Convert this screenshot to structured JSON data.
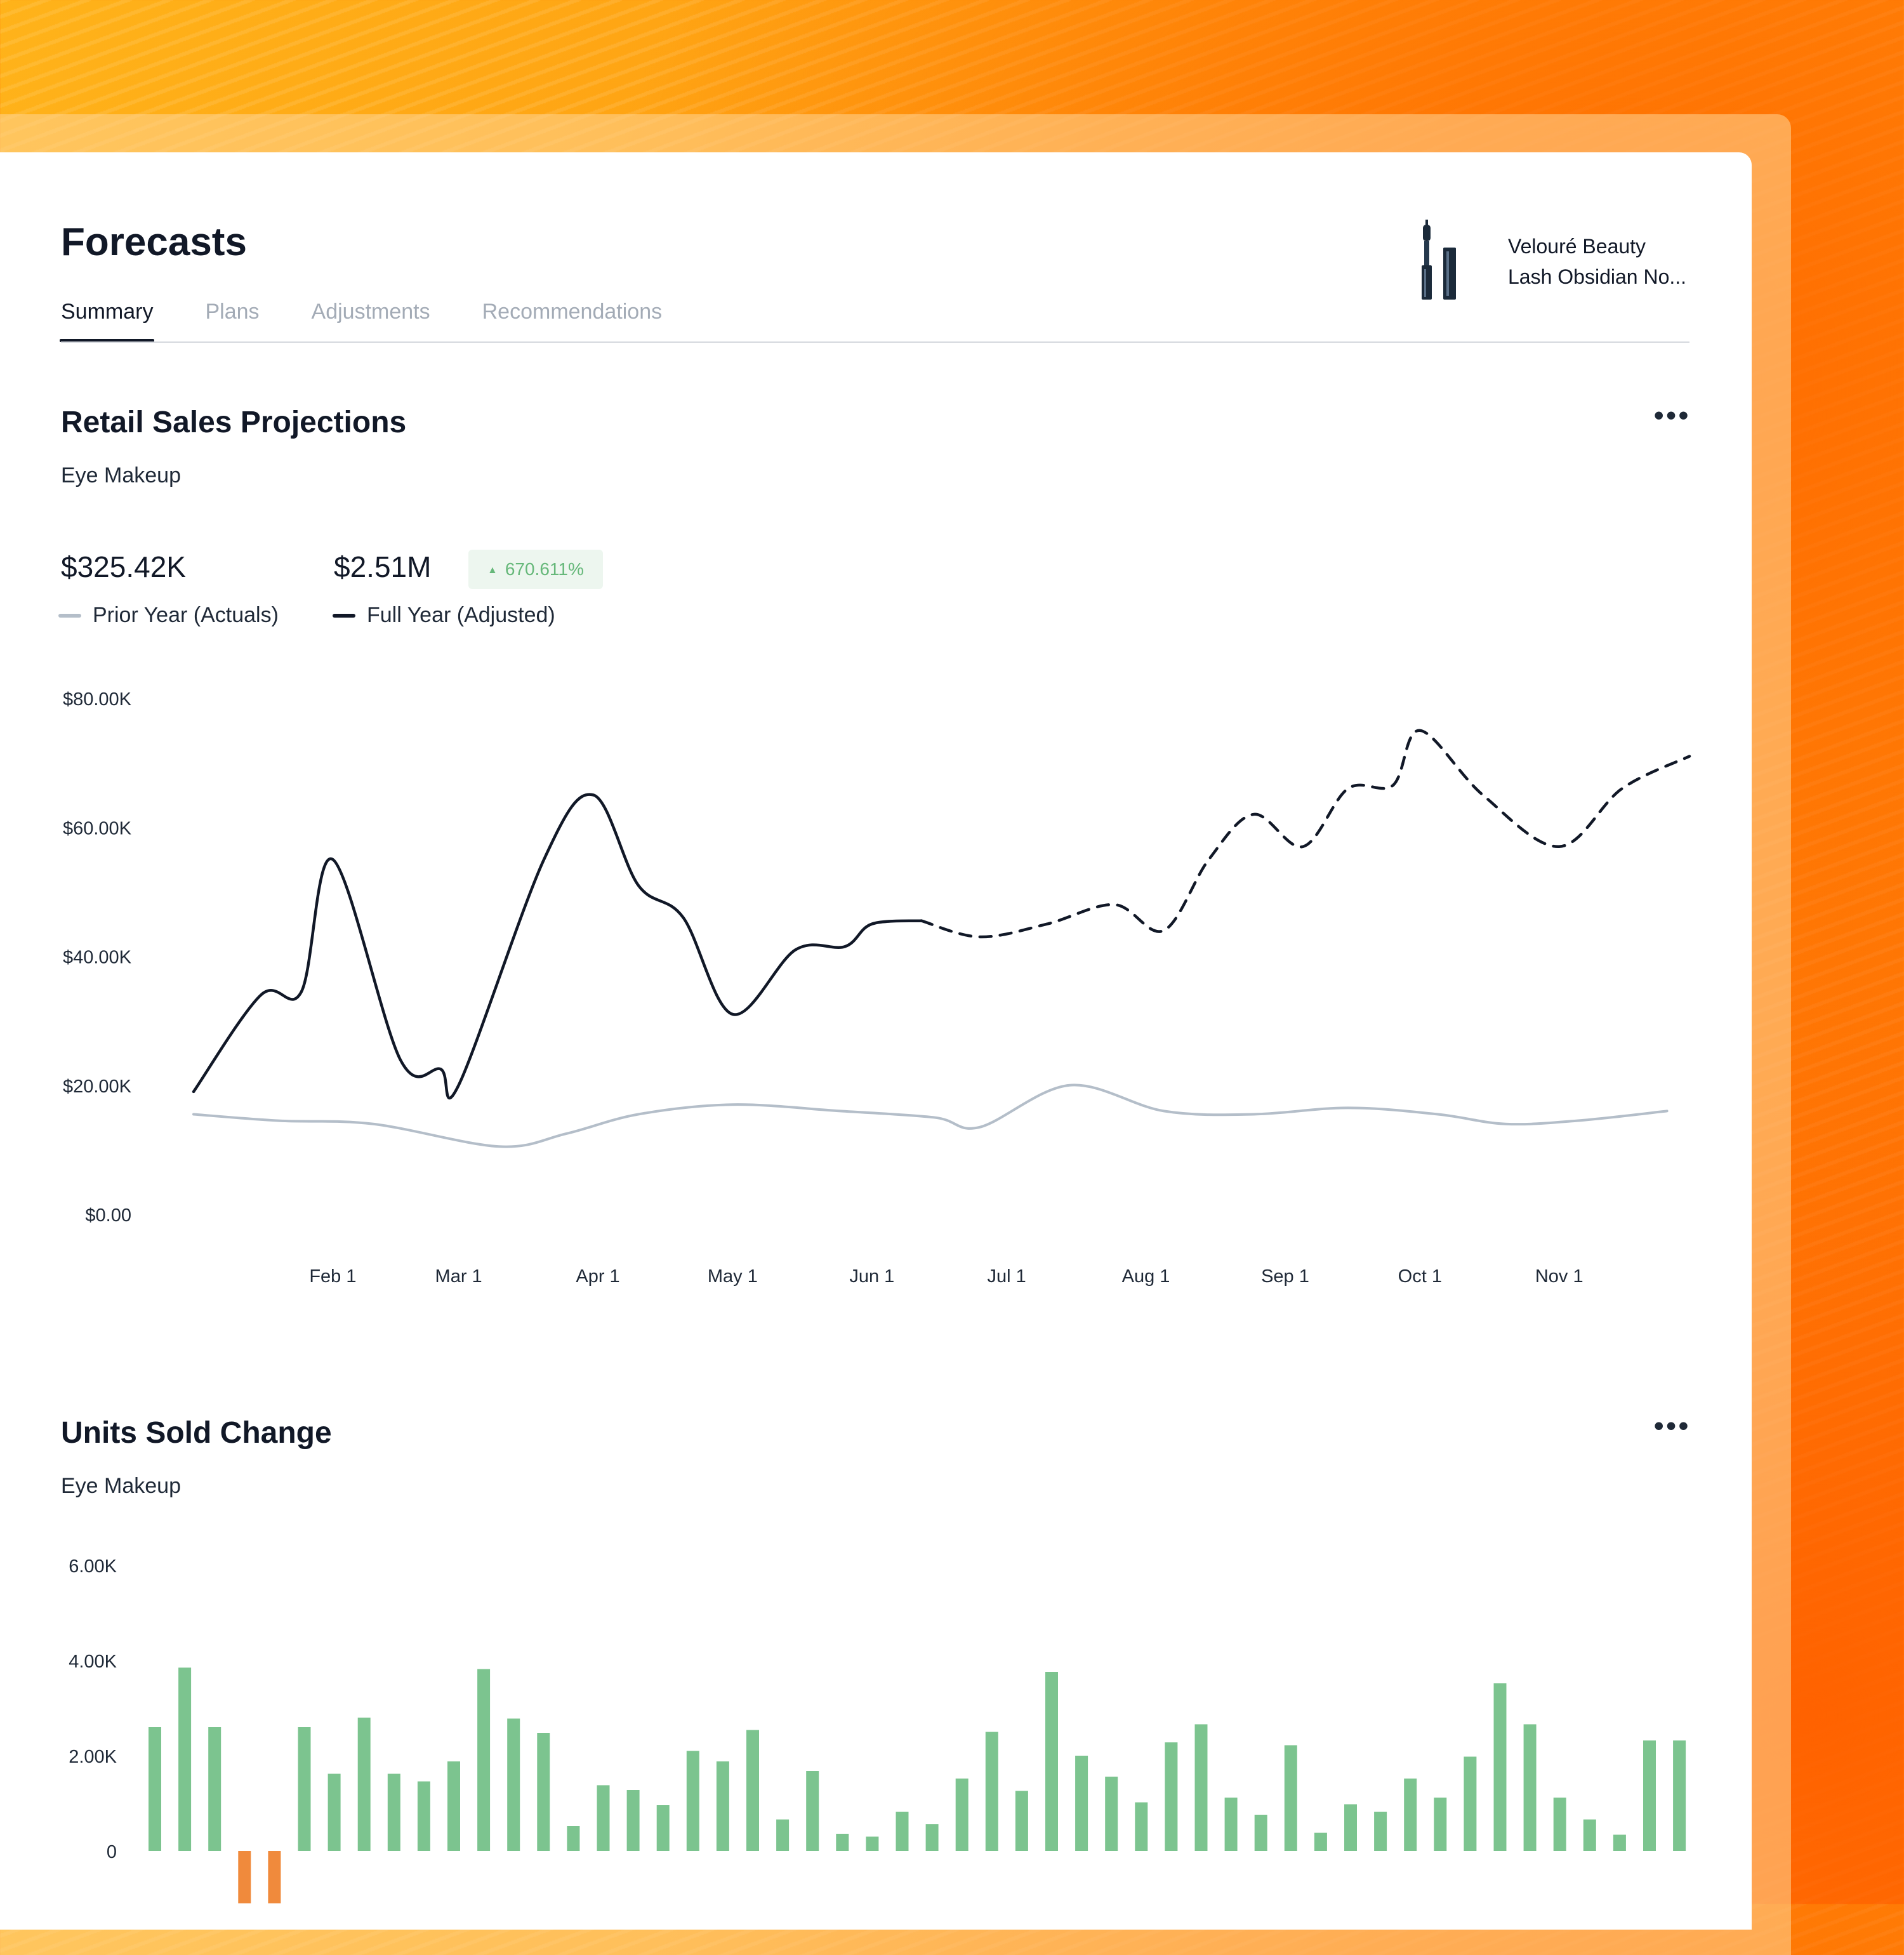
{
  "page": {
    "title": "Forecasts",
    "tabs": [
      {
        "label": "Summary"
      },
      {
        "label": "Plans"
      },
      {
        "label": "Adjustments"
      },
      {
        "label": "Recommendations"
      }
    ],
    "product": {
      "brand": "Velouré Beauty",
      "name": "Lash Obsidian No..."
    }
  },
  "sales": {
    "title": "Retail Sales Projections",
    "subtitle": "Eye Makeup",
    "metric_prior": "$325.42K",
    "metric_full": "$2.51M",
    "change": "670.611%",
    "legend_prior": "Prior Year (Actuals)",
    "legend_full": "Full Year (Adjusted)"
  },
  "units": {
    "title": "Units Sold Change",
    "subtitle": "Eye Makeup"
  },
  "colors": {
    "accent": "#111827",
    "prior": "#b4bec9",
    "positive_bar": "#7cc48f",
    "negative_bar": "#f08a3c",
    "badge_text": "#66b87a"
  },
  "chart_data": [
    {
      "type": "line",
      "ylim": [
        0,
        80000
      ],
      "y_ticks": [
        "$80.00K",
        "$60.00K",
        "$40.00K",
        "$20.00K",
        "$0.00"
      ],
      "x_ticks": [
        "Feb 1",
        "Mar 1",
        "Apr 1",
        "May 1",
        "Jun 1",
        "Jul 1",
        "Aug 1",
        "Sep 1",
        "Oct 1",
        "Nov 1"
      ],
      "series": [
        {
          "name": "Full Year (Adjusted)",
          "style": "solid",
          "points": [
            [
              "Jan 1",
              19000
            ],
            [
              "Jan 16",
              34000
            ],
            [
              "Jan 25",
              34500
            ],
            [
              "Feb 1",
              55000
            ],
            [
              "Feb 16",
              24000
            ],
            [
              "Feb 25",
              22500
            ],
            [
              "Mar 1",
              20000
            ],
            [
              "Mar 20",
              55000
            ],
            [
              "Mar 31",
              65000
            ],
            [
              "Apr 10",
              51000
            ],
            [
              "Apr 20",
              46000
            ],
            [
              "May 1",
              31000
            ],
            [
              "May 15",
              41000
            ],
            [
              "May 26",
              41500
            ],
            [
              "Jun 1",
              45000
            ],
            [
              "Jun 12",
              45500
            ]
          ]
        },
        {
          "name": "Full Year (Adjusted) Projection",
          "style": "dashed",
          "points": [
            [
              "Jun 12",
              45500
            ],
            [
              "Jun 25",
              43000
            ],
            [
              "Jul 10",
              45000
            ],
            [
              "Jul 25",
              48000
            ],
            [
              "Aug 5",
              44000
            ],
            [
              "Aug 15",
              55000
            ],
            [
              "Aug 25",
              62000
            ],
            [
              "Sep 5",
              57000
            ],
            [
              "Sep 15",
              66000
            ],
            [
              "Sep 25",
              66500
            ],
            [
              "Oct 1",
              75000
            ],
            [
              "Oct 15",
              65000
            ],
            [
              "Nov 1",
              57000
            ],
            [
              "Nov 15",
              66000
            ],
            [
              "Nov 30",
              71000
            ]
          ]
        },
        {
          "name": "Prior Year (Actuals)",
          "style": "solid",
          "points": [
            [
              "Jan 1",
              15500
            ],
            [
              "Jan 20",
              14500
            ],
            [
              "Feb 10",
              14000
            ],
            [
              "Mar 10",
              10500
            ],
            [
              "Mar 25",
              12500
            ],
            [
              "Apr 10",
              15500
            ],
            [
              "May 1",
              17000
            ],
            [
              "May 25",
              16000
            ],
            [
              "Jun 15",
              15000
            ],
            [
              "Jun 25",
              13500
            ],
            [
              "Jul 15",
              20000
            ],
            [
              "Aug 5",
              16000
            ],
            [
              "Aug 25",
              15500
            ],
            [
              "Sep 15",
              16500
            ],
            [
              "Oct 5",
              15500
            ],
            [
              "Oct 20",
              14000
            ],
            [
              "Nov 5",
              14500
            ],
            [
              "Nov 25",
              16000
            ]
          ]
        }
      ]
    },
    {
      "type": "bar",
      "ylim": [
        -1000,
        6000
      ],
      "y_ticks": [
        "6.00K",
        "4.00K",
        "2.00K",
        "0"
      ],
      "values": [
        2600,
        3850,
        2600,
        -1100,
        -1100,
        2600,
        1620,
        2800,
        1620,
        1460,
        1880,
        3820,
        2780,
        2480,
        520,
        1380,
        1280,
        960,
        2100,
        1880,
        2540,
        660,
        1680,
        360,
        300,
        820,
        560,
        1520,
        2500,
        1260,
        3760,
        2000,
        1560,
        1020,
        2280,
        2660,
        1120,
        760,
        2220,
        380,
        980,
        820,
        1520,
        1120,
        1980,
        3520,
        2660,
        1120,
        660,
        340,
        2320,
        2320
      ]
    }
  ]
}
